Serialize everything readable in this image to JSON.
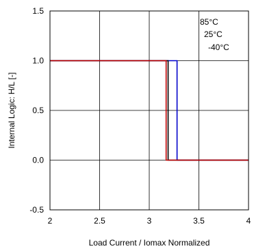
{
  "chart_data": {
    "type": "line",
    "title": "",
    "xlabel": "Load Current / Iomax Normalized",
    "ylabel": "Internal Logic: H/L [-]",
    "xlim": [
      2,
      4
    ],
    "ylim": [
      -0.5,
      1.5
    ],
    "x_ticks": [
      "2",
      "2.5",
      "3",
      "3.5",
      "4"
    ],
    "x_tick_values": [
      2,
      2.5,
      3,
      3.5,
      4
    ],
    "y_ticks": [
      "-0.5",
      "0.0",
      "0.5",
      "1.0",
      "1.5"
    ],
    "y_tick_values": [
      -0.5,
      0.0,
      0.5,
      1.0,
      1.5
    ],
    "grid": true,
    "legend_position": "top-right",
    "series": [
      {
        "name": "85°C",
        "color": "#c00000",
        "x": [
          2,
          3.17,
          3.17,
          4
        ],
        "y": [
          1,
          1,
          0,
          0
        ]
      },
      {
        "name": "25°C",
        "color": "#000000",
        "x": [
          2,
          3.19,
          3.19,
          4
        ],
        "y": [
          1,
          1,
          0,
          0
        ]
      },
      {
        "name": "-40°C",
        "color": "#0000cc",
        "x": [
          2,
          3.28,
          3.28,
          4
        ],
        "y": [
          1,
          1,
          0,
          0
        ]
      }
    ]
  }
}
